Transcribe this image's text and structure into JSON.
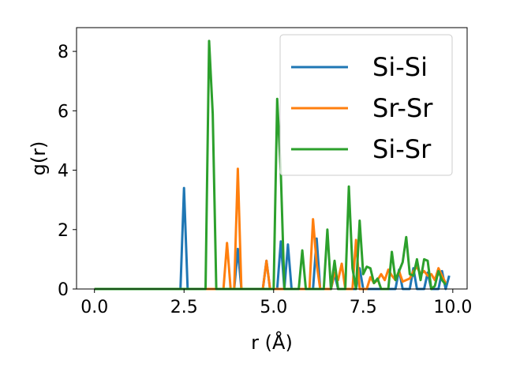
{
  "chart_data": {
    "type": "line",
    "title": "",
    "xlabel": "r (Å)",
    "ylabel": "g(r)",
    "xlim": [
      -0.5,
      10.4
    ],
    "ylim": [
      0,
      8.8
    ],
    "xticks": [
      "0.0",
      "2.5",
      "5.0",
      "7.5",
      "10.0"
    ],
    "yticks": [
      "0",
      "2",
      "4",
      "6",
      "8"
    ],
    "grid": false,
    "legend_position": "upper-right",
    "series": [
      {
        "name": "Si-Si",
        "color": "#1f77b4",
        "points": [
          [
            0.0,
            0
          ],
          [
            2.4,
            0
          ],
          [
            2.5,
            3.4
          ],
          [
            2.6,
            0
          ],
          [
            3.9,
            0
          ],
          [
            4.0,
            1.35
          ],
          [
            4.1,
            0
          ],
          [
            4.7,
            0
          ],
          [
            4.8,
            0.95
          ],
          [
            4.9,
            0
          ],
          [
            5.1,
            0
          ],
          [
            5.2,
            1.6
          ],
          [
            5.3,
            0
          ],
          [
            5.4,
            1.5
          ],
          [
            5.5,
            0
          ],
          [
            6.1,
            0
          ],
          [
            6.2,
            1.7
          ],
          [
            6.3,
            0
          ],
          [
            6.6,
            0
          ],
          [
            6.7,
            0.5
          ],
          [
            6.8,
            0
          ],
          [
            7.3,
            0
          ],
          [
            7.4,
            0.7
          ],
          [
            7.5,
            0
          ],
          [
            8.4,
            0
          ],
          [
            8.5,
            0.65
          ],
          [
            8.6,
            0
          ],
          [
            8.8,
            0
          ],
          [
            8.9,
            0.7
          ],
          [
            9.0,
            0
          ],
          [
            9.2,
            0
          ],
          [
            9.3,
            0.55
          ],
          [
            9.4,
            0
          ],
          [
            9.6,
            0
          ],
          [
            9.7,
            0.6
          ],
          [
            9.8,
            0
          ],
          [
            9.9,
            0.45
          ]
        ]
      },
      {
        "name": "Sr-Sr",
        "color": "#ff7f0e",
        "points": [
          [
            0.0,
            0
          ],
          [
            3.6,
            0
          ],
          [
            3.7,
            1.55
          ],
          [
            3.8,
            0
          ],
          [
            3.9,
            0
          ],
          [
            4.0,
            4.05
          ],
          [
            4.1,
            0
          ],
          [
            4.7,
            0
          ],
          [
            4.8,
            0.95
          ],
          [
            4.9,
            0
          ],
          [
            6.0,
            0
          ],
          [
            6.1,
            2.35
          ],
          [
            6.2,
            0.85
          ],
          [
            6.3,
            0
          ],
          [
            6.6,
            0
          ],
          [
            6.7,
            0.55
          ],
          [
            6.8,
            0.3
          ],
          [
            6.9,
            0.85
          ],
          [
            7.0,
            0
          ],
          [
            7.2,
            0
          ],
          [
            7.3,
            1.65
          ],
          [
            7.4,
            0
          ],
          [
            7.6,
            0
          ],
          [
            7.7,
            0.4
          ],
          [
            7.8,
            0.2
          ],
          [
            7.9,
            0.3
          ],
          [
            8.0,
            0.5
          ],
          [
            8.1,
            0.3
          ],
          [
            8.2,
            0.65
          ],
          [
            8.3,
            0.45
          ],
          [
            8.4,
            0.3
          ],
          [
            8.5,
            0.6
          ],
          [
            8.6,
            0.25
          ],
          [
            8.8,
            0.35
          ],
          [
            8.9,
            0.6
          ],
          [
            9.0,
            0.75
          ],
          [
            9.1,
            0.5
          ],
          [
            9.2,
            0.6
          ],
          [
            9.3,
            0.45
          ],
          [
            9.4,
            0.5
          ],
          [
            9.5,
            0.3
          ],
          [
            9.6,
            0.7
          ],
          [
            9.7,
            0.45
          ],
          [
            9.8,
            0.2
          ]
        ]
      },
      {
        "name": "Si-Sr",
        "color": "#2ca02c",
        "points": [
          [
            0.0,
            0
          ],
          [
            3.1,
            0
          ],
          [
            3.2,
            8.35
          ],
          [
            3.3,
            5.9
          ],
          [
            3.4,
            0
          ],
          [
            5.0,
            0
          ],
          [
            5.1,
            6.4
          ],
          [
            5.2,
            3.9
          ],
          [
            5.3,
            0
          ],
          [
            5.7,
            0
          ],
          [
            5.8,
            1.3
          ],
          [
            5.9,
            0
          ],
          [
            6.4,
            0
          ],
          [
            6.5,
            2.0
          ],
          [
            6.6,
            0
          ],
          [
            6.7,
            0.95
          ],
          [
            6.8,
            0
          ],
          [
            7.0,
            0
          ],
          [
            7.1,
            3.45
          ],
          [
            7.2,
            0.7
          ],
          [
            7.3,
            0
          ],
          [
            7.4,
            2.3
          ],
          [
            7.5,
            0.5
          ],
          [
            7.6,
            0.75
          ],
          [
            7.7,
            0.7
          ],
          [
            7.8,
            0.2
          ],
          [
            7.9,
            0.35
          ],
          [
            8.0,
            0
          ],
          [
            8.2,
            0
          ],
          [
            8.3,
            1.25
          ],
          [
            8.4,
            0.3
          ],
          [
            8.6,
            0.9
          ],
          [
            8.7,
            1.75
          ],
          [
            8.8,
            0.5
          ],
          [
            8.9,
            0.45
          ],
          [
            9.0,
            1.0
          ],
          [
            9.1,
            0.3
          ],
          [
            9.2,
            1.0
          ],
          [
            9.3,
            0.95
          ],
          [
            9.4,
            0
          ],
          [
            9.5,
            0.1
          ],
          [
            9.6,
            0.6
          ],
          [
            9.7,
            0.3
          ],
          [
            9.8,
            0.15
          ]
        ]
      }
    ]
  }
}
